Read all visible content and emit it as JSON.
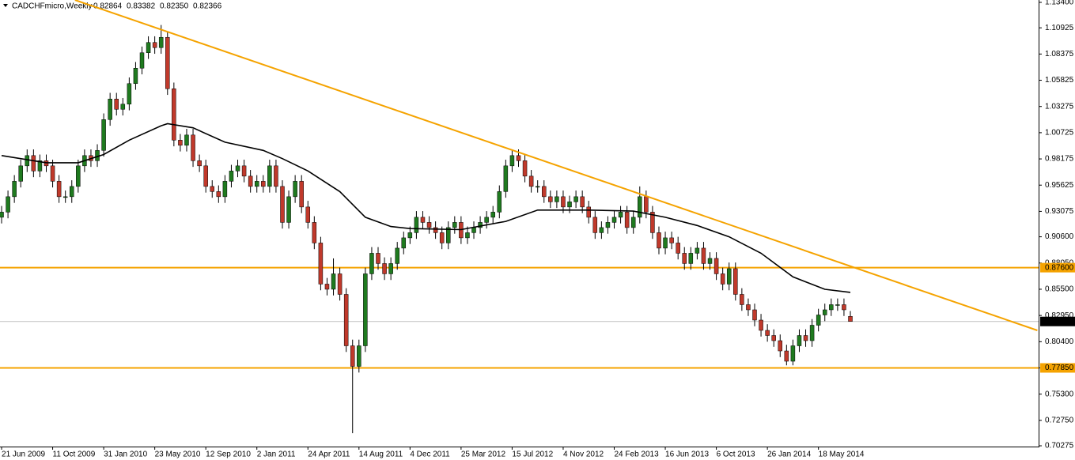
{
  "chart_data": {
    "type": "candlestick",
    "title": "CADCHFmicro,Weekly",
    "last_bar_labels": [
      "0.82864",
      "0.83382",
      "0.82350",
      "0.82366"
    ],
    "bull_color": "#1f7a1f",
    "bear_color": "#c0392b",
    "xlim": [
      -0.25,
      162.5
    ],
    "ylim": [
      0.702,
      1.1363
    ],
    "xticks": [
      {
        "value": 0,
        "label": "21 Jun 2009"
      },
      {
        "value": 8,
        "label": "11 Oct 2009"
      },
      {
        "value": 16,
        "label": "31 Jan 2010"
      },
      {
        "value": 24,
        "label": "23 May 2010"
      },
      {
        "value": 32,
        "label": "12 Sep 2010"
      },
      {
        "value": 40,
        "label": "2 Jan 2011"
      },
      {
        "value": 48,
        "label": "24 Apr 2011"
      },
      {
        "value": 56,
        "label": "14 Aug 2011"
      },
      {
        "value": 64,
        "label": "4 Dec 2011"
      },
      {
        "value": 72,
        "label": "25 Mar 2012"
      },
      {
        "value": 80,
        "label": "15 Jul 2012"
      },
      {
        "value": 88,
        "label": "4 Nov 2012"
      },
      {
        "value": 96,
        "label": "24 Feb 2013"
      },
      {
        "value": 104,
        "label": "16 Jun 2013"
      },
      {
        "value": 112,
        "label": "6 Oct 2013"
      },
      {
        "value": 120,
        "label": "26 Jan 2014"
      },
      {
        "value": 128,
        "label": "18 May 2014"
      }
    ],
    "yticks": [
      {
        "value": 1.134,
        "label": "1.13400"
      },
      {
        "value": 1.10925,
        "label": "1.10925"
      },
      {
        "value": 1.08375,
        "label": "1.08375"
      },
      {
        "value": 1.05825,
        "label": "1.05825"
      },
      {
        "value": 1.03275,
        "label": "1.03275"
      },
      {
        "value": 1.00725,
        "label": "1.00725"
      },
      {
        "value": 0.98175,
        "label": "0.98175"
      },
      {
        "value": 0.95625,
        "label": "0.95625"
      },
      {
        "value": 0.93075,
        "label": "0.93075"
      },
      {
        "value": 0.906,
        "label": "0.90600"
      },
      {
        "value": 0.8805,
        "label": "0.88050"
      },
      {
        "value": 0.855,
        "label": "0.85500"
      },
      {
        "value": 0.8295,
        "label": "0.82950"
      },
      {
        "value": 0.804,
        "label": "0.80400"
      },
      {
        "value": 0.7785,
        "label": "0.77850"
      },
      {
        "value": 0.753,
        "label": "0.75300"
      },
      {
        "value": 0.7275,
        "label": "0.72750"
      },
      {
        "value": 0.70275,
        "label": "0.70275"
      }
    ],
    "levels": [
      {
        "value": 0.876,
        "label": "0.87600",
        "color": "#f5a300"
      },
      {
        "value": 0.7785,
        "label": "0.77850",
        "color": "#f5a300"
      }
    ],
    "price_line": {
      "value": 0.82366,
      "label": "0.82366",
      "color": "#c0c0c0"
    },
    "trendline": {
      "color": "#f5a300",
      "x": [
        11.5,
        162.3
      ],
      "values": [
        1.1363,
        0.815
      ]
    },
    "moving_average": {
      "color": "#000000",
      "x": [
        0,
        7,
        12,
        16,
        20,
        25,
        26,
        30,
        35,
        41,
        44,
        48,
        53,
        57,
        61,
        64,
        72,
        79,
        84,
        92,
        99,
        104,
        109,
        114,
        119,
        124,
        129,
        133
      ],
      "values": [
        0.985,
        0.978,
        0.978,
        0.986,
        1.0,
        1.014,
        1.016,
        1.012,
        0.998,
        0.99,
        0.982,
        0.97,
        0.95,
        0.925,
        0.916,
        0.914,
        0.913,
        0.921,
        0.932,
        0.932,
        0.931,
        0.925,
        0.917,
        0.906,
        0.89,
        0.867,
        0.855,
        0.852
      ]
    },
    "candles": [
      [
        0.925,
        0.936,
        0.919,
        0.93
      ],
      [
        0.93,
        0.951,
        0.924,
        0.945
      ],
      [
        0.945,
        0.966,
        0.939,
        0.96
      ],
      [
        0.96,
        0.981,
        0.954,
        0.975
      ],
      [
        0.975,
        0.991,
        0.969,
        0.985
      ],
      [
        0.985,
        0.991,
        0.964,
        0.97
      ],
      [
        0.97,
        0.986,
        0.964,
        0.98
      ],
      [
        0.98,
        0.986,
        0.969,
        0.975
      ],
      [
        0.975,
        0.981,
        0.954,
        0.96
      ],
      [
        0.96,
        0.966,
        0.939,
        0.945
      ],
      [
        0.945,
        0.951,
        0.939,
        0.945
      ],
      [
        0.945,
        0.961,
        0.939,
        0.955
      ],
      [
        0.955,
        0.981,
        0.949,
        0.975
      ],
      [
        0.975,
        0.991,
        0.969,
        0.985
      ],
      [
        0.985,
        0.991,
        0.974,
        0.98
      ],
      [
        0.98,
        0.996,
        0.974,
        0.99
      ],
      [
        0.99,
        1.026,
        0.984,
        1.02
      ],
      [
        1.02,
        1.046,
        1.014,
        1.04
      ],
      [
        1.04,
        1.046,
        1.024,
        1.03
      ],
      [
        1.03,
        1.041,
        1.024,
        1.035
      ],
      [
        1.035,
        1.061,
        1.029,
        1.055
      ],
      [
        1.055,
        1.076,
        1.049,
        1.07
      ],
      [
        1.07,
        1.091,
        1.064,
        1.085
      ],
      [
        1.085,
        1.101,
        1.079,
        1.095
      ],
      [
        1.095,
        1.101,
        1.084,
        1.09
      ],
      [
        1.09,
        1.112,
        1.084,
        1.1
      ],
      [
        1.1,
        1.106,
        1.044,
        1.05
      ],
      [
        1.05,
        1.056,
        0.994,
        1.0
      ],
      [
        1.0,
        1.006,
        0.989,
        0.995
      ],
      [
        0.995,
        1.011,
        0.989,
        1.005
      ],
      [
        1.005,
        1.011,
        0.974,
        0.98
      ],
      [
        0.98,
        0.986,
        0.969,
        0.975
      ],
      [
        0.975,
        0.981,
        0.949,
        0.955
      ],
      [
        0.955,
        0.961,
        0.944,
        0.95
      ],
      [
        0.95,
        0.956,
        0.939,
        0.945
      ],
      [
        0.945,
        0.966,
        0.939,
        0.96
      ],
      [
        0.96,
        0.976,
        0.954,
        0.97
      ],
      [
        0.97,
        0.981,
        0.964,
        0.975
      ],
      [
        0.975,
        0.981,
        0.959,
        0.965
      ],
      [
        0.965,
        0.971,
        0.949,
        0.955
      ],
      [
        0.955,
        0.966,
        0.949,
        0.96
      ],
      [
        0.96,
        0.966,
        0.949,
        0.955
      ],
      [
        0.955,
        0.981,
        0.949,
        0.975
      ],
      [
        0.975,
        0.981,
        0.949,
        0.955
      ],
      [
        0.955,
        0.961,
        0.914,
        0.92
      ],
      [
        0.92,
        0.951,
        0.914,
        0.945
      ],
      [
        0.945,
        0.966,
        0.939,
        0.96
      ],
      [
        0.96,
        0.966,
        0.929,
        0.935
      ],
      [
        0.935,
        0.941,
        0.914,
        0.92
      ],
      [
        0.92,
        0.926,
        0.894,
        0.9
      ],
      [
        0.9,
        0.906,
        0.854,
        0.86
      ],
      [
        0.86,
        0.866,
        0.849,
        0.855
      ],
      [
        0.855,
        0.885,
        0.849,
        0.87
      ],
      [
        0.87,
        0.876,
        0.844,
        0.85
      ],
      [
        0.85,
        0.856,
        0.794,
        0.8
      ],
      [
        0.8,
        0.806,
        0.715,
        0.78
      ],
      [
        0.78,
        0.806,
        0.774,
        0.8
      ],
      [
        0.8,
        0.876,
        0.794,
        0.87
      ],
      [
        0.87,
        0.896,
        0.864,
        0.89
      ],
      [
        0.89,
        0.896,
        0.874,
        0.88
      ],
      [
        0.88,
        0.886,
        0.864,
        0.87
      ],
      [
        0.87,
        0.886,
        0.864,
        0.88
      ],
      [
        0.88,
        0.901,
        0.874,
        0.895
      ],
      [
        0.895,
        0.911,
        0.889,
        0.905
      ],
      [
        0.905,
        0.916,
        0.899,
        0.91
      ],
      [
        0.91,
        0.931,
        0.904,
        0.925
      ],
      [
        0.925,
        0.931,
        0.914,
        0.92
      ],
      [
        0.92,
        0.926,
        0.909,
        0.915
      ],
      [
        0.915,
        0.921,
        0.904,
        0.91
      ],
      [
        0.91,
        0.916,
        0.894,
        0.9
      ],
      [
        0.9,
        0.921,
        0.894,
        0.915
      ],
      [
        0.915,
        0.926,
        0.909,
        0.92
      ],
      [
        0.92,
        0.926,
        0.899,
        0.905
      ],
      [
        0.905,
        0.916,
        0.899,
        0.91
      ],
      [
        0.91,
        0.921,
        0.904,
        0.915
      ],
      [
        0.915,
        0.926,
        0.909,
        0.92
      ],
      [
        0.92,
        0.931,
        0.914,
        0.925
      ],
      [
        0.925,
        0.936,
        0.919,
        0.93
      ],
      [
        0.93,
        0.956,
        0.924,
        0.95
      ],
      [
        0.95,
        0.981,
        0.944,
        0.975
      ],
      [
        0.975,
        0.991,
        0.969,
        0.985
      ],
      [
        0.985,
        0.991,
        0.974,
        0.98
      ],
      [
        0.98,
        0.986,
        0.959,
        0.965
      ],
      [
        0.965,
        0.971,
        0.949,
        0.955
      ],
      [
        0.955,
        0.961,
        0.949,
        0.955
      ],
      [
        0.955,
        0.961,
        0.939,
        0.945
      ],
      [
        0.945,
        0.951,
        0.934,
        0.94
      ],
      [
        0.94,
        0.951,
        0.934,
        0.945
      ],
      [
        0.945,
        0.951,
        0.929,
        0.935
      ],
      [
        0.935,
        0.946,
        0.929,
        0.94
      ],
      [
        0.94,
        0.951,
        0.934,
        0.945
      ],
      [
        0.945,
        0.951,
        0.929,
        0.935
      ],
      [
        0.935,
        0.941,
        0.919,
        0.925
      ],
      [
        0.925,
        0.931,
        0.904,
        0.91
      ],
      [
        0.91,
        0.921,
        0.904,
        0.915
      ],
      [
        0.915,
        0.926,
        0.909,
        0.92
      ],
      [
        0.92,
        0.931,
        0.914,
        0.925
      ],
      [
        0.925,
        0.936,
        0.919,
        0.93
      ],
      [
        0.93,
        0.936,
        0.909,
        0.915
      ],
      [
        0.915,
        0.931,
        0.909,
        0.925
      ],
      [
        0.925,
        0.955,
        0.919,
        0.945
      ],
      [
        0.945,
        0.951,
        0.924,
        0.93
      ],
      [
        0.93,
        0.936,
        0.904,
        0.91
      ],
      [
        0.91,
        0.916,
        0.889,
        0.895
      ],
      [
        0.895,
        0.911,
        0.889,
        0.905
      ],
      [
        0.905,
        0.911,
        0.894,
        0.9
      ],
      [
        0.9,
        0.906,
        0.884,
        0.89
      ],
      [
        0.89,
        0.896,
        0.874,
        0.88
      ],
      [
        0.88,
        0.896,
        0.874,
        0.89
      ],
      [
        0.89,
        0.901,
        0.884,
        0.895
      ],
      [
        0.895,
        0.901,
        0.874,
        0.88
      ],
      [
        0.88,
        0.891,
        0.874,
        0.885
      ],
      [
        0.885,
        0.891,
        0.864,
        0.87
      ],
      [
        0.87,
        0.876,
        0.854,
        0.86
      ],
      [
        0.86,
        0.881,
        0.854,
        0.875
      ],
      [
        0.875,
        0.881,
        0.844,
        0.85
      ],
      [
        0.85,
        0.856,
        0.834,
        0.84
      ],
      [
        0.84,
        0.846,
        0.829,
        0.835
      ],
      [
        0.835,
        0.841,
        0.819,
        0.825
      ],
      [
        0.825,
        0.831,
        0.809,
        0.815
      ],
      [
        0.815,
        0.821,
        0.804,
        0.81
      ],
      [
        0.81,
        0.816,
        0.799,
        0.805
      ],
      [
        0.805,
        0.811,
        0.789,
        0.795
      ],
      [
        0.795,
        0.801,
        0.781,
        0.785
      ],
      [
        0.785,
        0.806,
        0.781,
        0.8
      ],
      [
        0.8,
        0.816,
        0.794,
        0.81
      ],
      [
        0.81,
        0.816,
        0.799,
        0.805
      ],
      [
        0.805,
        0.826,
        0.799,
        0.82
      ],
      [
        0.82,
        0.836,
        0.814,
        0.83
      ],
      [
        0.83,
        0.841,
        0.824,
        0.835
      ],
      [
        0.835,
        0.846,
        0.829,
        0.84
      ],
      [
        0.84,
        0.846,
        0.834,
        0.84
      ],
      [
        0.84,
        0.846,
        0.829,
        0.835
      ],
      [
        0.82864,
        0.83382,
        0.8235,
        0.82366
      ]
    ]
  }
}
